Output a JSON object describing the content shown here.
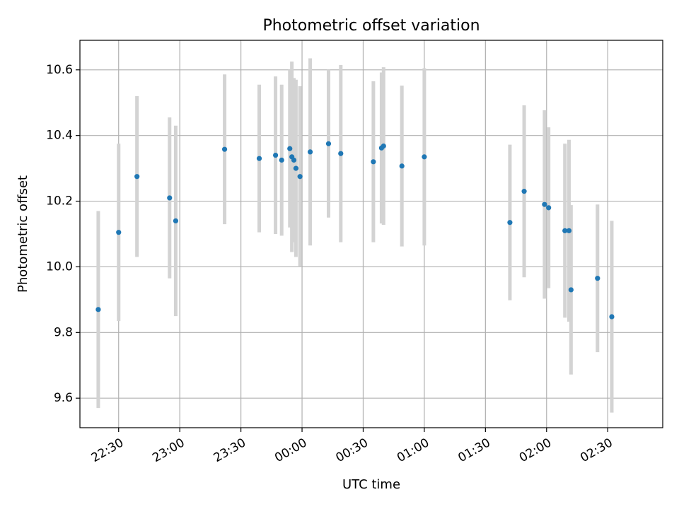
{
  "chart_data": {
    "type": "scatter",
    "title": "Photometric offset variation",
    "xlabel": "UTC time",
    "ylabel": "Photometric offset",
    "x_unit": "UTC hh:mm (day 1 22:00 – day 2 02:50)",
    "xlim": [
      "22:11",
      "02:57"
    ],
    "ylim": [
      9.51,
      10.69
    ],
    "x_ticks": [
      "22:30",
      "23:00",
      "23:30",
      "00:00",
      "00:30",
      "01:00",
      "01:30",
      "02:00",
      "02:30"
    ],
    "y_ticks": [
      "9.6",
      "9.8",
      "10.0",
      "10.2",
      "10.4",
      "10.6"
    ],
    "y_tick_values": [
      9.6,
      9.8,
      10.0,
      10.2,
      10.4,
      10.6
    ],
    "grid": true,
    "marker_color": "#1f77b4",
    "errorbar_color": "#d3d3d3",
    "points": [
      {
        "t": "22:20",
        "y": 9.87,
        "err": 0.3
      },
      {
        "t": "22:30",
        "y": 10.105,
        "err": 0.27
      },
      {
        "t": "22:39",
        "y": 10.275,
        "err": 0.245
      },
      {
        "t": "22:55",
        "y": 10.21,
        "err": 0.245
      },
      {
        "t": "22:58",
        "y": 10.14,
        "err": 0.29
      },
      {
        "t": "23:22",
        "y": 10.358,
        "err": 0.228
      },
      {
        "t": "23:39",
        "y": 10.33,
        "err": 0.225
      },
      {
        "t": "23:47",
        "y": 10.34,
        "err": 0.24
      },
      {
        "t": "23:50",
        "y": 10.325,
        "err": 0.23
      },
      {
        "t": "23:54",
        "y": 10.36,
        "err": 0.24
      },
      {
        "t": "23:55",
        "y": 10.335,
        "err": 0.29
      },
      {
        "t": "23:56",
        "y": 10.325,
        "err": 0.25
      },
      {
        "t": "23:57",
        "y": 10.3,
        "err": 0.27
      },
      {
        "t": "23:59",
        "y": 10.275,
        "err": 0.275
      },
      {
        "t": "00:04",
        "y": 10.35,
        "err": 0.285
      },
      {
        "t": "00:13",
        "y": 10.375,
        "err": 0.225
      },
      {
        "t": "00:19",
        "y": 10.345,
        "err": 0.27
      },
      {
        "t": "00:35",
        "y": 10.32,
        "err": 0.245
      },
      {
        "t": "00:39",
        "y": 10.362,
        "err": 0.23
      },
      {
        "t": "00:40",
        "y": 10.368,
        "err": 0.24
      },
      {
        "t": "00:49",
        "y": 10.307,
        "err": 0.245
      },
      {
        "t": "01:00",
        "y": 10.335,
        "err": 0.27
      },
      {
        "t": "01:42",
        "y": 10.135,
        "err": 0.237
      },
      {
        "t": "01:49",
        "y": 10.23,
        "err": 0.262
      },
      {
        "t": "01:59",
        "y": 10.19,
        "err": 0.287
      },
      {
        "t": "02:01",
        "y": 10.18,
        "err": 0.245
      },
      {
        "t": "02:09",
        "y": 10.11,
        "err": 0.265
      },
      {
        "t": "02:11",
        "y": 10.11,
        "err": 0.277
      },
      {
        "t": "02:12",
        "y": 9.93,
        "err": 0.258
      },
      {
        "t": "02:25",
        "y": 9.965,
        "err": 0.225
      },
      {
        "t": "02:32",
        "y": 9.848,
        "err": 0.292
      }
    ]
  }
}
